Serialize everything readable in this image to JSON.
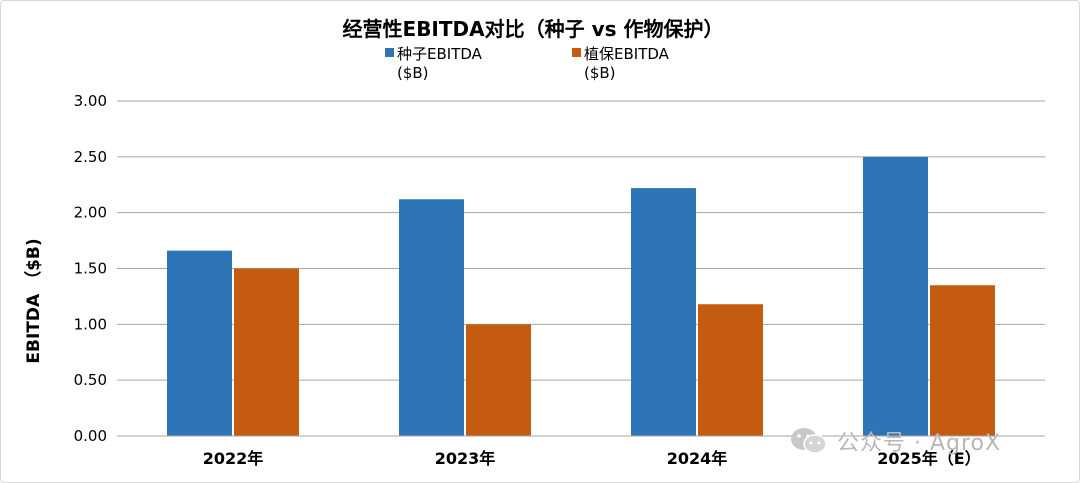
{
  "colors": {
    "seed": "#2e75b6",
    "crop": "#c55a11",
    "grid": "#a6a6a6",
    "text": "#000000",
    "watermark": "#b8b8b8"
  },
  "chart_data": {
    "type": "bar",
    "title": "经营性EBITDA对比（种子 vs 作物保护）",
    "ylabel": "EBITDA （$B)",
    "xlabel": "",
    "categories": [
      "2022年",
      "2023年",
      "2024年",
      "2025年（E）"
    ],
    "ylim": [
      0,
      3
    ],
    "yticks": [
      "0.00",
      "0.50",
      "1.00",
      "1.50",
      "2.00",
      "2.50",
      "3.00"
    ],
    "grid": true,
    "legend_position": "top",
    "series": [
      {
        "name": "种子EBITDA ($B)",
        "legend_lines": [
          "种子EBITDA",
          "($B)"
        ],
        "color": "#2e75b6",
        "values": [
          1.66,
          2.12,
          2.22,
          2.5
        ]
      },
      {
        "name": "植保EBITDA ($B)",
        "legend_lines": [
          "植保EBITDA",
          "($B)"
        ],
        "color": "#c55a11",
        "values": [
          1.5,
          1.0,
          1.18,
          1.35
        ]
      }
    ]
  },
  "watermark": {
    "text": "公众号 · AgroX",
    "icon": "wechat-icon"
  }
}
